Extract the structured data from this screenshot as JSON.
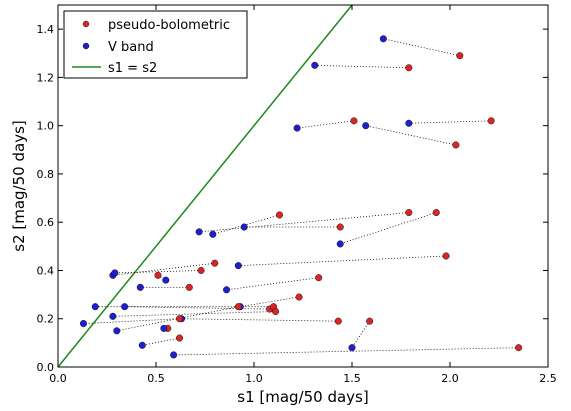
{
  "chart_data": {
    "type": "scatter",
    "xlabel": "s1 [mag/50 days]",
    "ylabel": "s2 [mag/50 days]",
    "xlim": [
      0.0,
      2.5
    ],
    "ylim": [
      0.0,
      1.5
    ],
    "xticks": [
      "0.0",
      "0.5",
      "1.0",
      "1.5",
      "2.0",
      "2.5"
    ],
    "yticks": [
      "0.0",
      "0.2",
      "0.4",
      "0.6",
      "0.8",
      "1.0",
      "1.2",
      "1.4"
    ],
    "grid": false,
    "legend_position": "top-left",
    "colors": {
      "pseudo": "#d62728",
      "vband": "#1f1fcc",
      "line": "#1b8a1b",
      "connector": "#000000"
    },
    "legend": [
      {
        "label": "pseudo-bolometric",
        "marker": "dot",
        "color": "#d62728"
      },
      {
        "label": "V band",
        "marker": "dot",
        "color": "#1f1fcc"
      },
      {
        "label": "s1 = s2",
        "marker": "line",
        "color": "#1b8a1b"
      }
    ],
    "reference_line": {
      "label": "s1 = s2",
      "x": [
        0.0,
        1.5
      ],
      "y": [
        0.0,
        1.5
      ]
    },
    "pairs": [
      {
        "pseudo": [
          2.05,
          1.29
        ],
        "vband": [
          1.66,
          1.36
        ]
      },
      {
        "pseudo": [
          1.79,
          1.24
        ],
        "vband": [
          1.31,
          1.25
        ]
      },
      {
        "pseudo": [
          2.21,
          1.02
        ],
        "vband": [
          1.79,
          1.01
        ]
      },
      {
        "pseudo": [
          1.51,
          1.02
        ],
        "vband": [
          1.22,
          0.99
        ]
      },
      {
        "pseudo": [
          2.03,
          0.92
        ],
        "vband": [
          1.57,
          1.0
        ]
      },
      {
        "pseudo": [
          1.13,
          0.63
        ],
        "vband": [
          0.79,
          0.55
        ]
      },
      {
        "pseudo": [
          1.44,
          0.58
        ],
        "vband": [
          0.95,
          0.58
        ]
      },
      {
        "pseudo": [
          1.79,
          0.64
        ],
        "vband": [
          0.72,
          0.56
        ]
      },
      {
        "pseudo": [
          1.93,
          0.64
        ],
        "vband": [
          1.44,
          0.51
        ]
      },
      {
        "pseudo": [
          1.98,
          0.46
        ],
        "vband": [
          0.92,
          0.42
        ]
      },
      {
        "pseudo": [
          0.8,
          0.43
        ],
        "vband": [
          0.28,
          0.38
        ]
      },
      {
        "pseudo": [
          0.73,
          0.4
        ],
        "vband": [
          0.29,
          0.39
        ]
      },
      {
        "pseudo": [
          0.51,
          0.38
        ],
        "vband": [
          0.55,
          0.36
        ]
      },
      {
        "pseudo": [
          1.33,
          0.37
        ],
        "vband": [
          0.86,
          0.32
        ]
      },
      {
        "pseudo": [
          0.67,
          0.33
        ],
        "vband": [
          0.42,
          0.33
        ]
      },
      {
        "pseudo": [
          1.23,
          0.29
        ],
        "vband": [
          0.93,
          0.25
        ]
      },
      {
        "pseudo": [
          1.08,
          0.24
        ],
        "vband": [
          0.34,
          0.25
        ]
      },
      {
        "pseudo": [
          1.1,
          0.25
        ],
        "vband": [
          0.19,
          0.25
        ]
      },
      {
        "pseudo": [
          1.11,
          0.23
        ],
        "vband": [
          0.28,
          0.21
        ]
      },
      {
        "pseudo": [
          1.43,
          0.19
        ],
        "vband": [
          0.63,
          0.2
        ]
      },
      {
        "pseudo": [
          1.59,
          0.19
        ],
        "vband": [
          1.5,
          0.08
        ]
      },
      {
        "pseudo": [
          0.62,
          0.2
        ],
        "vband": [
          0.13,
          0.18
        ]
      },
      {
        "pseudo": [
          0.92,
          0.25
        ],
        "vband": [
          0.3,
          0.15
        ]
      },
      {
        "pseudo": [
          0.62,
          0.12
        ],
        "vband": [
          0.43,
          0.09
        ]
      },
      {
        "pseudo": [
          0.56,
          0.16
        ],
        "vband": [
          0.54,
          0.16
        ]
      },
      {
        "pseudo": [
          2.35,
          0.08
        ],
        "vband": [
          0.59,
          0.05
        ]
      }
    ]
  }
}
